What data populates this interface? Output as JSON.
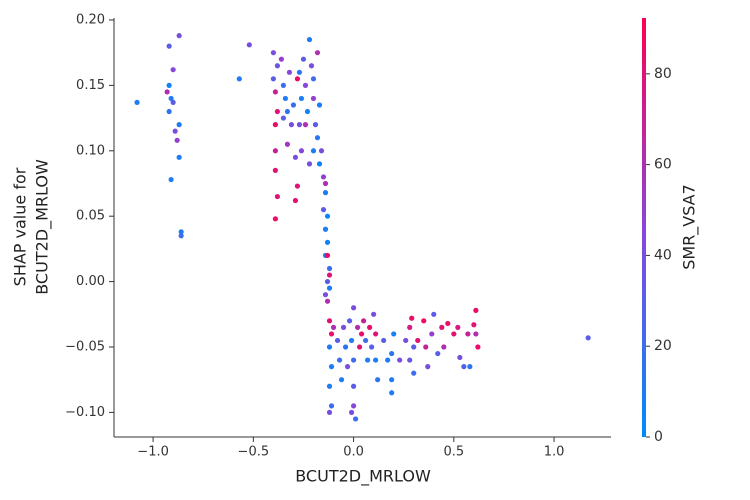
{
  "chart_data": {
    "type": "scatter",
    "xlabel": "BCUT2D_MRLOW",
    "ylabel": [
      "SHAP value for",
      "BCUT2D_MRLOW"
    ],
    "xlim": [
      -1.195,
      1.284
    ],
    "ylim": [
      -0.1188,
      0.2015
    ],
    "xticks": [
      {
        "value": -1.0,
        "label": "−1.0"
      },
      {
        "value": -0.5,
        "label": "−0.5"
      },
      {
        "value": 0.0,
        "label": "0.0"
      },
      {
        "value": 0.5,
        "label": "0.5"
      },
      {
        "value": 1.0,
        "label": "1.0"
      }
    ],
    "yticks": [
      {
        "value": -0.1,
        "label": "−0.10"
      },
      {
        "value": -0.05,
        "label": "−0.05"
      },
      {
        "value": 0.0,
        "label": "0.00"
      },
      {
        "value": 0.05,
        "label": "0.05"
      },
      {
        "value": 0.1,
        "label": "0.10"
      },
      {
        "value": 0.15,
        "label": "0.15"
      },
      {
        "value": 0.2,
        "label": "0.20"
      }
    ],
    "colorbar": {
      "label": "SMR_VSA7",
      "lim": [
        0,
        92.3
      ],
      "ticks": [
        0,
        20,
        40,
        60,
        80
      ],
      "colors": [
        "#008bfb",
        "#8a45da",
        "#ff0052"
      ]
    },
    "x": [
      -0.92,
      -0.87,
      -0.9,
      -0.93,
      -0.91,
      -0.92,
      -0.89,
      -0.87,
      -0.88,
      -0.87,
      -0.91,
      -0.86,
      -0.86,
      -0.92,
      -0.9,
      -1.08,
      -0.57,
      -0.52,
      -0.4,
      -0.38,
      -0.4,
      -0.39,
      -0.38,
      -0.39,
      -0.39,
      -0.39,
      -0.38,
      -0.39,
      -0.36,
      -0.35,
      -0.34,
      -0.33,
      -0.32,
      -0.31,
      -0.3,
      -0.29,
      -0.28,
      -0.29,
      -0.27,
      -0.26,
      -0.25,
      -0.24,
      -0.23,
      -0.22,
      -0.21,
      -0.2,
      -0.2,
      -0.19,
      -0.18,
      -0.2,
      -0.22,
      -0.24,
      -0.26,
      -0.18,
      -0.17,
      -0.16,
      -0.17,
      -0.33,
      -0.35,
      -0.28,
      -0.27,
      -0.15,
      -0.14,
      -0.15,
      -0.13,
      -0.14,
      -0.13,
      -0.14,
      -0.12,
      -0.13,
      -0.14,
      -0.13,
      -0.12,
      -0.13,
      -0.14,
      -0.12,
      -0.12,
      -0.11,
      -0.1,
      -0.12,
      -0.11,
      -0.12,
      -0.12,
      -0.11,
      -0.08,
      -0.07,
      -0.06,
      -0.05,
      -0.04,
      -0.03,
      -0.02,
      -0.01,
      0.0,
      0.0,
      -0.01,
      0.01,
      0.0,
      0.02,
      0.03,
      0.04,
      0.05,
      0.06,
      0.07,
      0.08,
      0.09,
      0.1,
      0.11,
      0.11,
      0.12,
      0.0,
      0.15,
      0.17,
      0.19,
      0.19,
      0.19,
      0.2,
      0.23,
      0.26,
      0.28,
      0.28,
      0.3,
      0.3,
      0.29,
      0.32,
      0.35,
      0.36,
      0.37,
      0.39,
      0.4,
      0.42,
      0.44,
      0.45,
      0.47,
      0.5,
      0.52,
      0.53,
      0.55,
      0.57,
      0.58,
      0.6,
      0.61,
      0.62,
      0.61,
      1.17
    ],
    "y": [
      0.18,
      0.188,
      0.162,
      0.145,
      0.14,
      0.13,
      0.115,
      0.12,
      0.108,
      0.095,
      0.078,
      0.038,
      0.035,
      0.15,
      0.137,
      0.137,
      0.155,
      0.181,
      0.175,
      0.165,
      0.155,
      0.145,
      0.13,
      0.12,
      0.1,
      0.085,
      0.065,
      0.048,
      0.17,
      0.15,
      0.14,
      0.13,
      0.16,
      0.12,
      0.135,
      0.095,
      0.073,
      0.062,
      0.16,
      0.14,
      0.17,
      0.15,
      0.13,
      0.185,
      0.165,
      0.155,
      0.14,
      0.12,
      0.11,
      0.1,
      0.09,
      0.12,
      0.1,
      0.175,
      0.135,
      0.1,
      0.09,
      0.105,
      0.125,
      0.155,
      0.12,
      0.08,
      0.068,
      0.055,
      0.05,
      0.04,
      0.03,
      0.02,
      0.01,
      0.0,
      -0.01,
      -0.015,
      0.005,
      0.02,
      0.075,
      -0.005,
      -0.03,
      -0.04,
      -0.035,
      -0.05,
      -0.065,
      -0.08,
      -0.1,
      -0.095,
      -0.045,
      -0.06,
      -0.075,
      -0.035,
      -0.05,
      -0.065,
      -0.03,
      -0.045,
      -0.06,
      -0.08,
      -0.1,
      -0.105,
      -0.095,
      -0.035,
      -0.05,
      -0.04,
      -0.03,
      -0.045,
      -0.06,
      -0.035,
      -0.05,
      -0.025,
      -0.04,
      -0.06,
      -0.075,
      -0.02,
      -0.045,
      -0.06,
      -0.055,
      -0.075,
      -0.085,
      -0.04,
      -0.06,
      -0.045,
      -0.035,
      -0.06,
      -0.05,
      -0.07,
      -0.028,
      -0.045,
      -0.03,
      -0.05,
      -0.065,
      -0.04,
      -0.025,
      -0.055,
      -0.035,
      -0.05,
      -0.032,
      -0.04,
      -0.035,
      -0.058,
      -0.065,
      -0.04,
      -0.065,
      -0.033,
      -0.022,
      -0.05,
      -0.04,
      -0.043
    ],
    "c": [
      30,
      40,
      45,
      60,
      10,
      15,
      40,
      10,
      50,
      10,
      10,
      10,
      20,
      5,
      30,
      10,
      10,
      40,
      40,
      35,
      30,
      70,
      80,
      85,
      70,
      80,
      80,
      85,
      50,
      20,
      10,
      15,
      45,
      40,
      20,
      40,
      80,
      80,
      15,
      10,
      30,
      45,
      5,
      10,
      40,
      20,
      50,
      30,
      15,
      10,
      40,
      60,
      45,
      60,
      10,
      40,
      5,
      55,
      30,
      85,
      40,
      50,
      10,
      30,
      5,
      10,
      5,
      10,
      20,
      30,
      40,
      60,
      80,
      85,
      60,
      10,
      80,
      85,
      60,
      10,
      10,
      10,
      40,
      20,
      30,
      20,
      10,
      40,
      15,
      40,
      30,
      10,
      20,
      30,
      40,
      20,
      45,
      60,
      80,
      85,
      70,
      20,
      10,
      85,
      30,
      40,
      80,
      10,
      15,
      40,
      30,
      10,
      15,
      10,
      10,
      5,
      40,
      40,
      75,
      35,
      30,
      20,
      85,
      80,
      85,
      70,
      40,
      50,
      30,
      30,
      80,
      60,
      85,
      80,
      75,
      40,
      25,
      70,
      15,
      80,
      85,
      85,
      60,
      30
    ]
  }
}
